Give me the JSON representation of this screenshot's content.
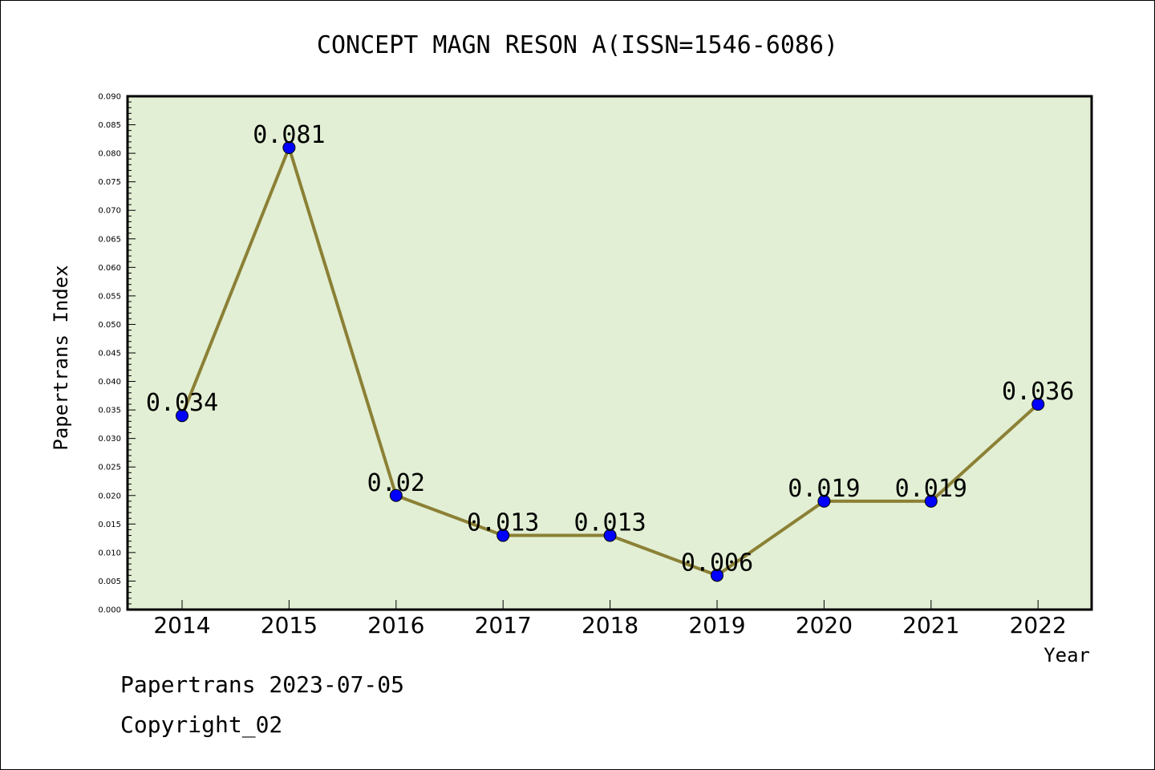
{
  "chart_data": {
    "type": "line",
    "title": "CONCEPT MAGN RESON A(ISSN=1546-6086)",
    "xlabel": "Year",
    "ylabel": "Papertrans Index",
    "categories": [
      "2014",
      "2015",
      "2016",
      "2017",
      "2018",
      "2019",
      "2020",
      "2021",
      "2022"
    ],
    "series": [
      {
        "values": [
          0.034,
          0.081,
          0.02,
          0.013,
          0.013,
          0.006,
          0.019,
          0.019,
          0.036
        ],
        "labels": [
          "0.034",
          "0.081",
          "0.02",
          "0.013",
          "0.013",
          "0.006",
          "0.019",
          "0.019",
          "0.036"
        ]
      }
    ],
    "ylim": [
      0,
      0.09
    ],
    "yticks": [
      "0.000",
      "0.005",
      "0.010",
      "0.015",
      "0.020",
      "0.025",
      "0.030",
      "0.035",
      "0.040",
      "0.045",
      "0.050",
      "0.055",
      "0.060",
      "0.065",
      "0.070",
      "0.075",
      "0.080",
      "0.085",
      "0.090"
    ],
    "grid": false,
    "colors": {
      "plot_background": "#e2efd4",
      "line": "#8b8035",
      "marker": "#0000ff"
    }
  },
  "footer": {
    "line1": "Papertrans 2023-07-05",
    "line2": "Copyright_02"
  }
}
